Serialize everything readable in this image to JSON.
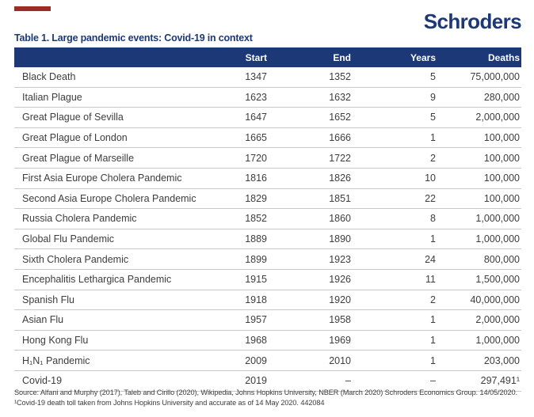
{
  "brand": {
    "logo_text": "Schroders",
    "navy_color": "#1c3876",
    "accent_bar_color": "#9b2c2a"
  },
  "title": "Table 1. Large pandemic events: Covid-19 in context",
  "table": {
    "headers": {
      "event": "",
      "start": "Start",
      "end": "End",
      "years": "Years",
      "deaths": "Deaths"
    },
    "rows": [
      {
        "event": "Black Death",
        "start": "1347",
        "end": "1352",
        "years": "5",
        "deaths": "75,000,000"
      },
      {
        "event": "Italian Plague",
        "start": "1623",
        "end": "1632",
        "years": "9",
        "deaths": "280,000"
      },
      {
        "event": "Great Plague of Sevilla",
        "start": "1647",
        "end": "1652",
        "years": "5",
        "deaths": "2,000,000"
      },
      {
        "event": "Great Plague of London",
        "start": "1665",
        "end": "1666",
        "years": "1",
        "deaths": "100,000"
      },
      {
        "event": "Great Plague of Marseille",
        "start": "1720",
        "end": "1722",
        "years": "2",
        "deaths": "100,000"
      },
      {
        "event": "First Asia Europe Cholera Pandemic",
        "start": "1816",
        "end": "1826",
        "years": "10",
        "deaths": "100,000"
      },
      {
        "event": "Second Asia Europe Cholera Pandemic",
        "start": "1829",
        "end": "1851",
        "years": "22",
        "deaths": "100,000"
      },
      {
        "event": "Russia Cholera Pandemic",
        "start": "1852",
        "end": "1860",
        "years": "8",
        "deaths": "1,000,000"
      },
      {
        "event": "Global Flu Pandemic",
        "start": "1889",
        "end": "1890",
        "years": "1",
        "deaths": "1,000,000"
      },
      {
        "event": "Sixth Cholera Pandemic",
        "start": "1899",
        "end": "1923",
        "years": "24",
        "deaths": "800,000"
      },
      {
        "event": "Encephalitis Lethargica Pandemic",
        "start": "1915",
        "end": "1926",
        "years": "11",
        "deaths": "1,500,000"
      },
      {
        "event": "Spanish Flu",
        "start": "1918",
        "end": "1920",
        "years": "2",
        "deaths": "40,000,000"
      },
      {
        "event": "Asian Flu",
        "start": "1957",
        "end": "1958",
        "years": "1",
        "deaths": "2,000,000"
      },
      {
        "event": "Hong Kong Flu",
        "start": "1968",
        "end": "1969",
        "years": "1",
        "deaths": "1,000,000"
      },
      {
        "event": "H₁N₁ Pandemic",
        "start": "2009",
        "end": "2010",
        "years": "1",
        "deaths": "203,000"
      },
      {
        "event": "Covid-19",
        "start": "2019",
        "end": "–",
        "years": "–",
        "deaths": "297,491¹"
      }
    ]
  },
  "footnotes": {
    "line1": "Source: Alfani and Murphy (2017), Taleb and Cirillo (2020), Wikipedia, Johns Hopkins University, NBER (March 2020) Schroders Economics Group. 14/05/2020.",
    "line2": "¹Covid-19 death toll taken from Johns Hopkins University and accurate as of 14 May 2020. 442084"
  }
}
